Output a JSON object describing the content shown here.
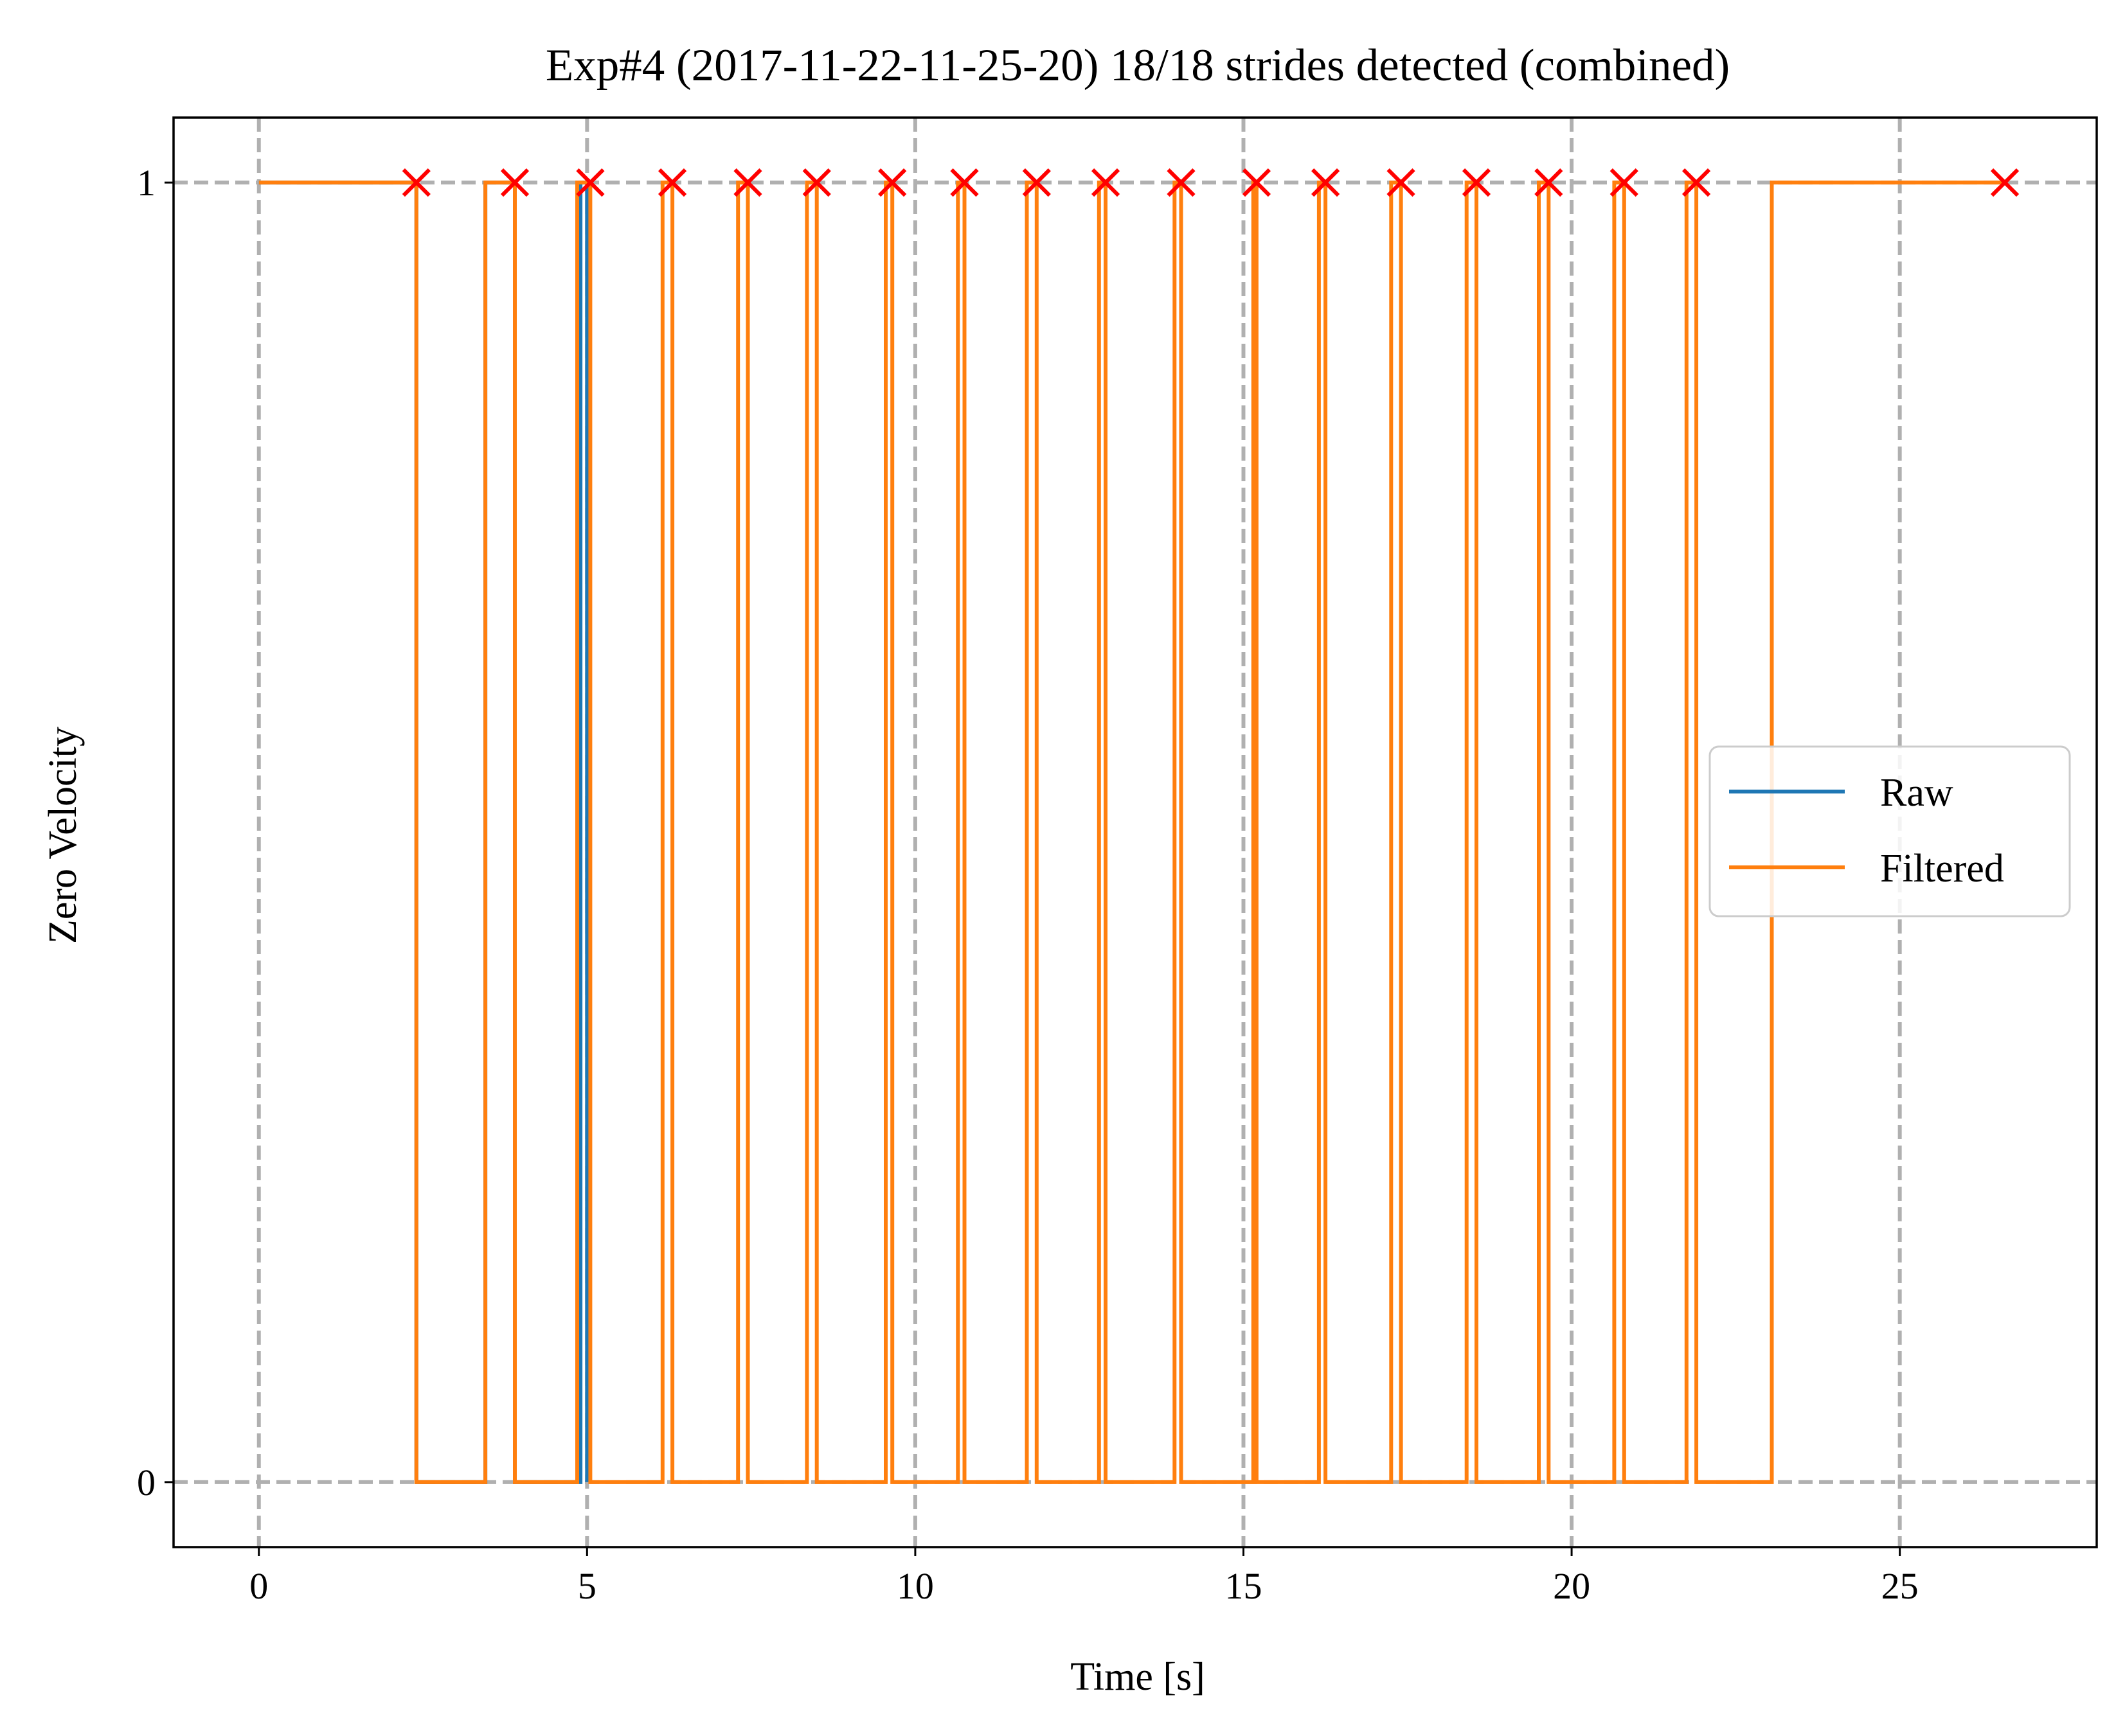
{
  "chart_data": {
    "type": "line",
    "title": "Exp#4 (2017-11-22-11-25-20) 18/18 strides detected (combined)",
    "xlabel": "Time [s]",
    "ylabel": "Zero Velocity",
    "xlim": [
      -1.3,
      28
    ],
    "ylim": [
      -0.05,
      1.05
    ],
    "x_ticks": [
      0,
      5,
      10,
      15,
      20,
      25
    ],
    "x_tick_labels": [
      "0",
      "5",
      "10",
      "15",
      "20",
      "25"
    ],
    "y_ticks": [
      0,
      1
    ],
    "y_tick_labels": [
      "0",
      "1"
    ],
    "grid": true,
    "grid_style": "dashed",
    "legend_position": "center-right",
    "series": [
      {
        "name": "Raw",
        "color": "#1f77b4",
        "step": true,
        "x": [
          0,
          2.4,
          3.45,
          3.9,
          4.9,
          5.0
        ],
        "y": [
          1,
          0,
          1,
          0,
          1,
          0
        ]
      },
      {
        "name": "Filtered",
        "color": "#ff7f0e",
        "step": true,
        "x": [
          0,
          2.4,
          3.45,
          3.9,
          4.85,
          5.05,
          6.15,
          6.3,
          7.3,
          7.45,
          8.35,
          8.5,
          9.55,
          9.65,
          10.65,
          10.75,
          11.7,
          11.85,
          12.8,
          12.9,
          13.95,
          14.05,
          15.15,
          15.2,
          16.15,
          16.25,
          17.25,
          17.4,
          18.4,
          18.55,
          19.5,
          19.65,
          20.65,
          20.8,
          21.75,
          21.9,
          23.05,
          26.6
        ],
        "y": [
          1,
          0,
          1,
          0,
          1,
          0,
          1,
          0,
          1,
          0,
          1,
          0,
          1,
          0,
          1,
          0,
          1,
          0,
          1,
          0,
          1,
          0,
          1,
          0,
          1,
          0,
          1,
          0,
          1,
          0,
          1,
          0,
          1,
          0,
          1,
          0,
          1,
          1
        ]
      }
    ],
    "markers": {
      "marker": "x",
      "color": "#ff0000",
      "x": [
        2.4,
        3.9,
        5.05,
        6.3,
        7.45,
        8.5,
        9.65,
        10.75,
        11.85,
        12.9,
        14.05,
        15.2,
        16.25,
        17.4,
        18.55,
        19.65,
        20.8,
        21.9,
        26.6
      ],
      "y": [
        1,
        1,
        1,
        1,
        1,
        1,
        1,
        1,
        1,
        1,
        1,
        1,
        1,
        1,
        1,
        1,
        1,
        1,
        1
      ]
    }
  }
}
